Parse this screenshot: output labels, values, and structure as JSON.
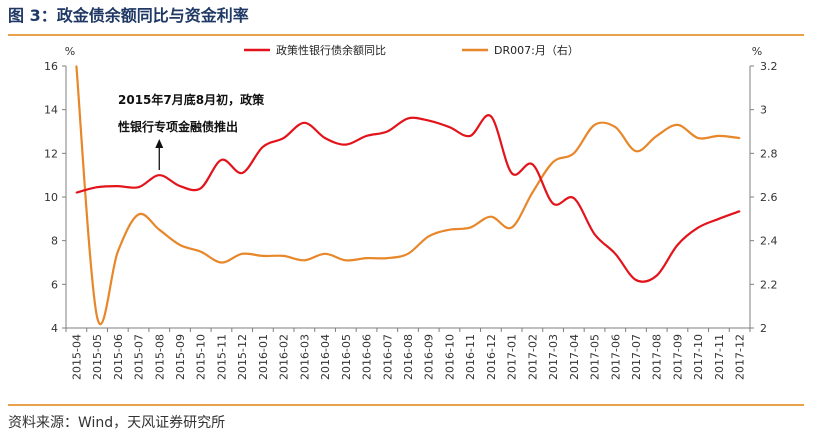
{
  "header": {
    "title": "图 3：政金债余额同比与资金利率"
  },
  "footer": {
    "source": "资料来源：Wind，天风证券研究所"
  },
  "chart_data": {
    "type": "line",
    "categories": [
      "2015-04",
      "2015-05",
      "2015-06",
      "2015-07",
      "2015-08",
      "2015-09",
      "2015-10",
      "2015-11",
      "2015-12",
      "2016-01",
      "2016-02",
      "2016-03",
      "2016-04",
      "2016-05",
      "2016-06",
      "2016-07",
      "2016-08",
      "2016-09",
      "2016-10",
      "2016-11",
      "2016-12",
      "2017-01",
      "2017-02",
      "2017-03",
      "2017-04",
      "2017-05",
      "2017-06",
      "2017-07",
      "2017-08",
      "2017-09",
      "2017-10",
      "2017-11",
      "2017-12"
    ],
    "series": [
      {
        "name": "政策性银行债余额同比",
        "axis": "left",
        "color": "#e3131b",
        "values": [
          10.2,
          10.45,
          10.5,
          10.45,
          11.0,
          10.5,
          10.4,
          11.7,
          11.1,
          12.3,
          12.7,
          13.4,
          12.7,
          12.4,
          12.8,
          13.0,
          13.6,
          13.5,
          13.2,
          12.8,
          13.7,
          11.1,
          11.5,
          9.7,
          9.95,
          8.3,
          7.4,
          6.2,
          6.4,
          7.8,
          8.6,
          9.0,
          9.35
        ]
      },
      {
        "name": "DR007:月（右）",
        "axis": "right",
        "color": "#e8862a",
        "values": [
          3.2,
          2.05,
          2.35,
          2.52,
          2.45,
          2.38,
          2.35,
          2.3,
          2.34,
          2.33,
          2.33,
          2.31,
          2.34,
          2.31,
          2.32,
          2.32,
          2.34,
          2.42,
          2.45,
          2.46,
          2.51,
          2.46,
          2.62,
          2.76,
          2.8,
          2.93,
          2.92,
          2.81,
          2.88,
          2.93,
          2.87,
          2.88,
          2.87
        ]
      }
    ],
    "y_left": {
      "unit": "%",
      "min": 4,
      "max": 16,
      "ticks": [
        "4",
        "6",
        "8",
        "10",
        "12",
        "14",
        "16"
      ]
    },
    "y_right": {
      "unit": "%",
      "min": 2,
      "max": 3.2,
      "ticks": [
        "2",
        "2.2",
        "2.4",
        "2.6",
        "2.8",
        "3",
        "3.2"
      ]
    },
    "legend_position": "top",
    "grid": false,
    "annotation": {
      "lines": [
        "2015年7月底8月初，政策",
        "性银行专项金融债推出"
      ],
      "category": "2015-08"
    }
  }
}
